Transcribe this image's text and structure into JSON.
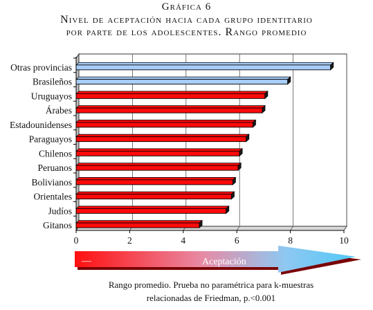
{
  "header": {
    "line1": "Gráfica 6",
    "line2": "Nivel de aceptación hacia cada grupo identitario",
    "line3": "por parte de los adolescentes. Rango promedio"
  },
  "chart_data": {
    "type": "bar",
    "orientation": "horizontal",
    "categories": [
      "Otras provincias",
      "Brasileños",
      "Uruguayos",
      "Árabes",
      "Estadounidenses",
      "Paraguayos",
      "Chilenos",
      "Peruanos",
      "Bolivianos",
      "Orientales",
      "Judíos",
      "Gitanos"
    ],
    "values": [
      9.5,
      7.9,
      7.05,
      6.95,
      6.6,
      6.35,
      6.1,
      6.05,
      5.85,
      5.8,
      5.6,
      4.6
    ],
    "bar_colors": [
      "#a8cdf8",
      "#a8cdf8",
      "#ff0a0a",
      "#ff0a0a",
      "#ff0a0a",
      "#ff0a0a",
      "#ff0a0a",
      "#ff0a0a",
      "#ff0a0a",
      "#ff0a0a",
      "#ff0a0a",
      "#ff0a0a"
    ],
    "xlim": [
      0,
      10
    ],
    "xticks": [
      0,
      2,
      4,
      6,
      8,
      10
    ],
    "grid": "vertical"
  },
  "arrow": {
    "minus_label": "—",
    "label": "Aceptación"
  },
  "note": {
    "line1": "Rango promedio. Prueba no paramétrica para k-muestras",
    "line2": "relacionadas de Friedman, p.<0.001"
  }
}
